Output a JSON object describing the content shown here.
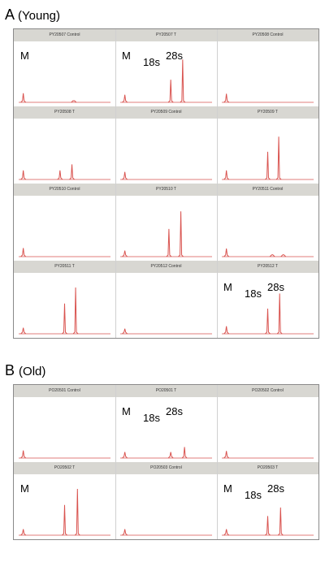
{
  "panels": [
    {
      "label": "A",
      "sublabel": "(Young)",
      "cells": [
        {
          "title": "PY20507 Control",
          "peaks": [
            {
              "pos": 0.05,
              "h": 0.18
            },
            {
              "pos": 0.6,
              "h": 0.03
            }
          ],
          "labels": [
            "M"
          ]
        },
        {
          "title": "PY20507 T",
          "peaks": [
            {
              "pos": 0.05,
              "h": 0.15
            },
            {
              "pos": 0.55,
              "h": 0.45
            },
            {
              "pos": 0.68,
              "h": 0.85
            }
          ],
          "labels": [
            "M",
            "18s",
            "28s"
          ]
        },
        {
          "title": "PY20508 Control",
          "peaks": [
            {
              "pos": 0.05,
              "h": 0.17
            }
          ],
          "labels": []
        },
        {
          "title": "PY20508 T",
          "peaks": [
            {
              "pos": 0.05,
              "h": 0.18
            },
            {
              "pos": 0.45,
              "h": 0.18
            },
            {
              "pos": 0.58,
              "h": 0.3
            }
          ],
          "labels": []
        },
        {
          "title": "PY20509 Control",
          "peaks": [
            {
              "pos": 0.05,
              "h": 0.15
            }
          ],
          "labels": []
        },
        {
          "title": "PY20509 T",
          "peaks": [
            {
              "pos": 0.05,
              "h": 0.18
            },
            {
              "pos": 0.5,
              "h": 0.55
            },
            {
              "pos": 0.62,
              "h": 0.85
            }
          ],
          "labels": []
        },
        {
          "title": "PY20510 Control",
          "peaks": [
            {
              "pos": 0.05,
              "h": 0.17
            }
          ],
          "labels": []
        },
        {
          "title": "PY20510 T",
          "peaks": [
            {
              "pos": 0.05,
              "h": 0.12
            },
            {
              "pos": 0.53,
              "h": 0.55
            },
            {
              "pos": 0.66,
              "h": 0.9
            }
          ],
          "labels": []
        },
        {
          "title": "PY20511 Control",
          "peaks": [
            {
              "pos": 0.05,
              "h": 0.16
            },
            {
              "pos": 0.55,
              "h": 0.04
            },
            {
              "pos": 0.67,
              "h": 0.04
            }
          ],
          "labels": []
        },
        {
          "title": "PY20511 T",
          "peaks": [
            {
              "pos": 0.05,
              "h": 0.12
            },
            {
              "pos": 0.5,
              "h": 0.6
            },
            {
              "pos": 0.62,
              "h": 0.92
            }
          ],
          "labels": []
        },
        {
          "title": "PY20512 Control",
          "peaks": [
            {
              "pos": 0.05,
              "h": 0.1
            }
          ],
          "labels": []
        },
        {
          "title": "PY20512 T",
          "peaks": [
            {
              "pos": 0.05,
              "h": 0.15
            },
            {
              "pos": 0.5,
              "h": 0.5
            },
            {
              "pos": 0.63,
              "h": 0.8
            }
          ],
          "labels": [
            "M",
            "18s",
            "28s"
          ]
        }
      ]
    },
    {
      "label": "B",
      "sublabel": "(Old)",
      "cells": [
        {
          "title": "PO20501 Control",
          "peaks": [
            {
              "pos": 0.05,
              "h": 0.15
            }
          ],
          "labels": []
        },
        {
          "title": "PO20501 T",
          "peaks": [
            {
              "pos": 0.05,
              "h": 0.12
            },
            {
              "pos": 0.55,
              "h": 0.12
            },
            {
              "pos": 0.7,
              "h": 0.22
            }
          ],
          "labels": [
            "M",
            "18s",
            "28s"
          ]
        },
        {
          "title": "PO20502 Control",
          "peaks": [
            {
              "pos": 0.05,
              "h": 0.14
            }
          ],
          "labels": []
        },
        {
          "title": "PO20502 T",
          "peaks": [
            {
              "pos": 0.05,
              "h": 0.12
            },
            {
              "pos": 0.5,
              "h": 0.6
            },
            {
              "pos": 0.64,
              "h": 0.92
            }
          ],
          "labels": [
            "M"
          ]
        },
        {
          "title": "PO20503 Control",
          "peaks": [
            {
              "pos": 0.05,
              "h": 0.12
            }
          ],
          "labels": []
        },
        {
          "title": "PO20503 T",
          "peaks": [
            {
              "pos": 0.05,
              "h": 0.12
            },
            {
              "pos": 0.5,
              "h": 0.38
            },
            {
              "pos": 0.64,
              "h": 0.55
            }
          ],
          "labels": [
            "M",
            "18s",
            "28s"
          ]
        }
      ]
    }
  ],
  "trace_color": "#d9534f"
}
